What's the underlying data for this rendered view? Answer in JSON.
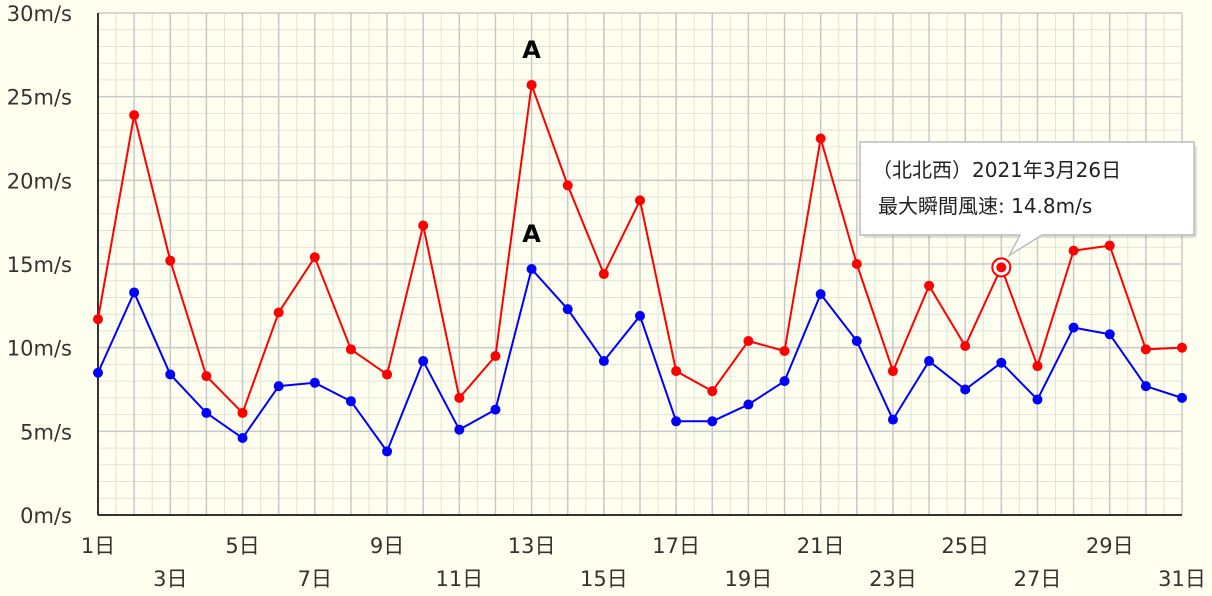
{
  "chart_data": {
    "type": "line",
    "title": "",
    "xlabel": "",
    "ylabel": "",
    "x": [
      1,
      2,
      3,
      4,
      5,
      6,
      7,
      8,
      9,
      10,
      11,
      12,
      13,
      14,
      15,
      16,
      17,
      18,
      19,
      20,
      21,
      22,
      23,
      24,
      25,
      26,
      27,
      28,
      29,
      30,
      31
    ],
    "x_tick_labels": [
      "1日",
      "3日",
      "5日",
      "7日",
      "9日",
      "11日",
      "13日",
      "15日",
      "17日",
      "19日",
      "21日",
      "23日",
      "25日",
      "27日",
      "29日",
      "31日"
    ],
    "x_tick_values": [
      1,
      3,
      5,
      7,
      9,
      11,
      13,
      15,
      17,
      19,
      21,
      23,
      25,
      27,
      29,
      31
    ],
    "y_tick_labels": [
      "0m/s",
      "5m/s",
      "10m/s",
      "15m/s",
      "20m/s",
      "25m/s",
      "30m/s"
    ],
    "y_tick_values": [
      0,
      5,
      10,
      15,
      20,
      25,
      30
    ],
    "ylim": [
      0,
      30
    ],
    "xlim": [
      1,
      31
    ],
    "grid": true,
    "legend": "none",
    "series": [
      {
        "color": "#ff0000",
        "values": [
          11.7,
          23.9,
          15.2,
          8.3,
          6.1,
          12.1,
          15.4,
          9.9,
          8.4,
          17.3,
          7.0,
          9.5,
          25.7,
          19.7,
          14.4,
          18.8,
          8.6,
          7.4,
          10.4,
          9.8,
          22.5,
          15.0,
          8.6,
          13.7,
          10.1,
          14.8,
          8.9,
          15.8,
          16.1,
          9.9,
          10.0
        ]
      },
      {
        "color": "#0000ff",
        "values": [
          8.5,
          13.3,
          8.4,
          6.1,
          4.6,
          7.7,
          7.9,
          6.8,
          3.8,
          9.2,
          5.1,
          6.3,
          14.7,
          12.3,
          9.2,
          11.9,
          5.6,
          5.6,
          6.6,
          8.0,
          13.2,
          10.4,
          5.7,
          9.2,
          7.5,
          9.1,
          6.9,
          11.2,
          10.8,
          7.7,
          7.0
        ]
      }
    ],
    "annotations": [
      {
        "text": "A",
        "x": 13,
        "series": 0
      },
      {
        "text": "A",
        "x": 13,
        "series": 1
      }
    ],
    "tooltip": {
      "line1": "（北北西）2021年3月26日",
      "line2": "最大瞬間風速: 14.8m/s",
      "x": 26,
      "series": 0
    }
  },
  "colors": {
    "background": "#fffff0",
    "grid_major": "#c8c8c8",
    "grid_minor": "#e2e2d8",
    "axis": "#333333"
  }
}
